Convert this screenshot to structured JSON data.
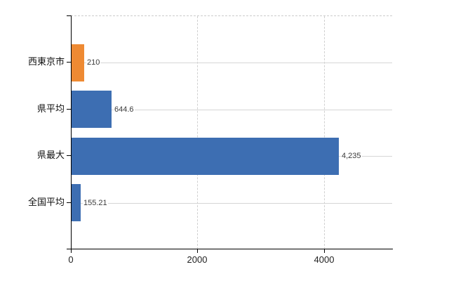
{
  "chart_data": {
    "type": "bar",
    "orientation": "horizontal",
    "title": "",
    "categories": [
      "西東京市",
      "県平均",
      "県最大",
      "全国平均"
    ],
    "values": [
      210,
      644.6,
      4235,
      155.21
    ],
    "value_labels": [
      "210",
      "644.6",
      "4,235",
      "155.21"
    ],
    "bar_colors": [
      "#ee8a33",
      "#3d6eb2",
      "#3d6eb2",
      "#3d6eb2"
    ],
    "x_ticks": [
      0,
      2000,
      4000
    ],
    "x_tick_labels": [
      "0",
      "2000",
      "4000"
    ],
    "xlim": [
      0,
      5075
    ],
    "ylabel": "",
    "xlabel": "",
    "legend": "none",
    "grid": {
      "vertical_style": "dashed",
      "horizontal_style": "solid",
      "color": "#d6d6d6",
      "top_border_style": "dashed"
    },
    "background_color": "#ffffff",
    "axis_color": "#000000"
  }
}
